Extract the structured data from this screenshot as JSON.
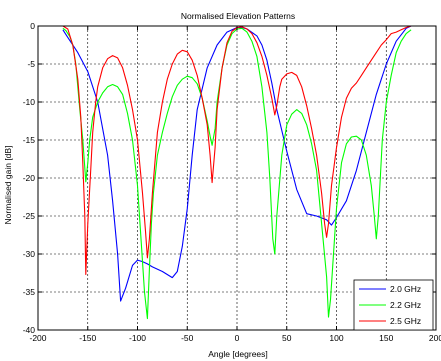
{
  "chart_data": {
    "type": "line",
    "title": "Normalised Elevation Patterns",
    "xlabel": "Angle [degrees]",
    "ylabel": "Normalised gain [dB]",
    "xlim": [
      -200,
      200
    ],
    "ylim": [
      -40,
      0
    ],
    "xticks": [
      -200,
      -150,
      -100,
      -50,
      0,
      50,
      100,
      150,
      200
    ],
    "yticks": [
      0,
      -5,
      -10,
      -15,
      -20,
      -25,
      -30,
      -35,
      -40
    ],
    "grid": true,
    "legend_position": "bottom-right",
    "series": [
      {
        "name": "2.0 GHz",
        "color": "#0000ff",
        "x": [
          -175,
          -170,
          -160,
          -150,
          -140,
          -130,
          -125,
          -120,
          -117,
          -112,
          -105,
          -100,
          -95,
          -90,
          -85,
          -75,
          -65,
          -60,
          -55,
          -50,
          -45,
          -40,
          -30,
          -20,
          -10,
          0,
          5,
          10,
          20,
          25,
          30,
          35,
          40,
          50,
          60,
          70,
          80,
          90,
          95,
          100,
          110,
          120,
          130,
          140,
          150,
          160,
          170,
          175
        ],
        "y": [
          -0.5,
          -1.5,
          -3.5,
          -6,
          -10,
          -17,
          -23,
          -30,
          -36.2,
          -34.5,
          -31.5,
          -30.8,
          -31,
          -31.3,
          -31.7,
          -32.3,
          -33.1,
          -32.3,
          -29,
          -24,
          -17,
          -11,
          -5.5,
          -2.5,
          -0.8,
          -0.2,
          -0.2,
          -0.4,
          -1.3,
          -2.5,
          -4.5,
          -7.5,
          -11,
          -16.5,
          -21.5,
          -24.7,
          -25,
          -25.5,
          -26.2,
          -25.2,
          -23,
          -19,
          -14,
          -9,
          -5,
          -2,
          -0.3,
          0
        ]
      },
      {
        "name": "2.2 GHz",
        "color": "#00ff00",
        "x": [
          -175,
          -172,
          -168,
          -165,
          -162,
          -160,
          -158,
          -155,
          -152,
          -150,
          -148,
          -145,
          -140,
          -135,
          -130,
          -125,
          -120,
          -115,
          -110,
          -105,
          -100,
          -97,
          -93,
          -90,
          -88,
          -86,
          -84,
          -80,
          -75,
          -70,
          -65,
          -60,
          -55,
          -50,
          -45,
          -40,
          -35,
          -30,
          -27,
          -25,
          -22,
          -20,
          -15,
          -10,
          -5,
          0,
          5,
          10,
          15,
          20,
          25,
          30,
          33,
          36,
          38,
          40,
          45,
          50,
          55,
          60,
          65,
          70,
          75,
          80,
          85,
          90,
          92,
          94,
          97,
          100,
          105,
          110,
          115,
          120,
          125,
          130,
          135,
          138,
          140,
          142,
          144,
          146,
          150,
          155,
          160,
          165,
          170,
          175
        ],
        "y": [
          -0.3,
          -0.6,
          -1.4,
          -2.5,
          -5,
          -8,
          -11,
          -15,
          -20.5,
          -18,
          -15,
          -12,
          -10,
          -8.8,
          -8,
          -7.7,
          -8,
          -9,
          -11.5,
          -15,
          -21,
          -27,
          -35,
          -38.5,
          -32,
          -26,
          -22,
          -17,
          -14,
          -11.5,
          -9.3,
          -7.8,
          -7,
          -6.6,
          -6.8,
          -7.6,
          -9.5,
          -12.5,
          -14.5,
          -15.7,
          -13.5,
          -10,
          -5.5,
          -2.5,
          -1,
          -0.4,
          -0.3,
          -0.8,
          -2,
          -4,
          -8,
          -14,
          -20,
          -28,
          -30,
          -25,
          -17,
          -13,
          -11.6,
          -11,
          -11.5,
          -13,
          -15.5,
          -19,
          -26,
          -33,
          -38.3,
          -36,
          -30,
          -24,
          -18,
          -15.5,
          -14.6,
          -14.5,
          -15,
          -17,
          -21,
          -25,
          -28,
          -25,
          -20,
          -15,
          -10,
          -6.5,
          -3.5,
          -2,
          -1,
          -0.5
        ]
      },
      {
        "name": "2.5 GHz",
        "color": "#ff0000",
        "x": [
          -175,
          -170,
          -165,
          -160,
          -157,
          -155,
          -153,
          -152,
          -150,
          -147,
          -145,
          -142,
          -140,
          -135,
          -130,
          -125,
          -120,
          -115,
          -110,
          -105,
          -100,
          -95,
          -92,
          -90,
          -88,
          -85,
          -80,
          -75,
          -70,
          -65,
          -60,
          -55,
          -50,
          -45,
          -40,
          -35,
          -30,
          -27,
          -25,
          -22,
          -20,
          -15,
          -10,
          -5,
          0,
          5,
          10,
          15,
          20,
          25,
          30,
          35,
          38,
          40,
          43,
          45,
          50,
          55,
          60,
          65,
          70,
          75,
          80,
          85,
          88,
          90,
          92,
          95,
          100,
          105,
          110,
          115,
          120,
          125,
          130,
          135,
          140,
          145,
          150,
          155,
          160,
          165,
          170,
          175
        ],
        "y": [
          0,
          -0.4,
          -2.5,
          -7,
          -12,
          -18,
          -25,
          -32.7,
          -26,
          -19,
          -14,
          -10,
          -8,
          -5.5,
          -4.3,
          -3.9,
          -4.2,
          -5.5,
          -7.8,
          -11,
          -15,
          -22,
          -27,
          -30.5,
          -28,
          -22,
          -14,
          -10,
          -7,
          -5,
          -3.7,
          -3.2,
          -3.4,
          -4.5,
          -6.5,
          -9.5,
          -13,
          -17,
          -20.6,
          -16,
          -11,
          -5.5,
          -2.2,
          -0.7,
          -0.2,
          -0.1,
          -0.4,
          -1,
          -2.2,
          -4,
          -6.5,
          -9.5,
          -11.7,
          -10.5,
          -8,
          -7,
          -6.3,
          -6.1,
          -6.5,
          -8,
          -10.5,
          -13.5,
          -17,
          -22,
          -26,
          -27.8,
          -26,
          -21,
          -16,
          -12,
          -9.5,
          -8.2,
          -7.5,
          -6.5,
          -5.5,
          -4.5,
          -3.5,
          -2.5,
          -1.8,
          -1,
          -0.8,
          -0.5,
          -0.2,
          0
        ]
      }
    ]
  }
}
